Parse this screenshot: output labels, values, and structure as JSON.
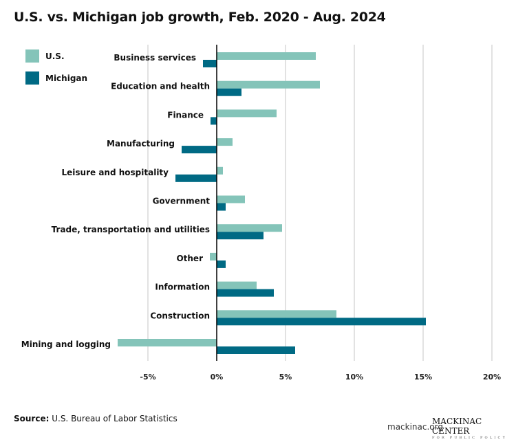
{
  "chart_data": {
    "type": "bar",
    "orientation": "horizontal",
    "title": "U.S. vs. Michigan job growth, Feb. 2020 - Aug. 2024",
    "categories": [
      "Business services",
      "Education and health",
      "Finance",
      "Manufacturing",
      "Leisure and hospitality",
      "Government",
      "Trade, transportation and utilities",
      "Other",
      "Information",
      "Construction",
      "Mining and logging"
    ],
    "series": [
      {
        "name": "U.S.",
        "color": "#84c4b9",
        "values": [
          7.2,
          7.5,
          4.35,
          1.15,
          0.45,
          2.05,
          4.75,
          -0.5,
          2.9,
          8.7,
          -7.2
        ]
      },
      {
        "name": "Michigan",
        "color": "#006a84",
        "values": [
          -1.0,
          1.8,
          -0.45,
          -2.55,
          -3.0,
          0.65,
          3.4,
          0.65,
          4.15,
          15.2,
          5.7
        ]
      }
    ],
    "xlim": [
      -5,
      20
    ],
    "xticks": [
      -5,
      0,
      5,
      10,
      15,
      20
    ],
    "xtick_labels": [
      "-5%",
      "0%",
      "5%",
      "10%",
      "15%",
      "20%"
    ],
    "unit": "%",
    "grid": "vertical",
    "legend": "top-left"
  },
  "footer": {
    "source_label": "Source:",
    "source_text": " U.S. Bureau of Labor Statistics",
    "site": "mackinac.org",
    "logo_line1": "MACKINAC CENTER",
    "logo_line2": "FOR PUBLIC POLICY"
  }
}
